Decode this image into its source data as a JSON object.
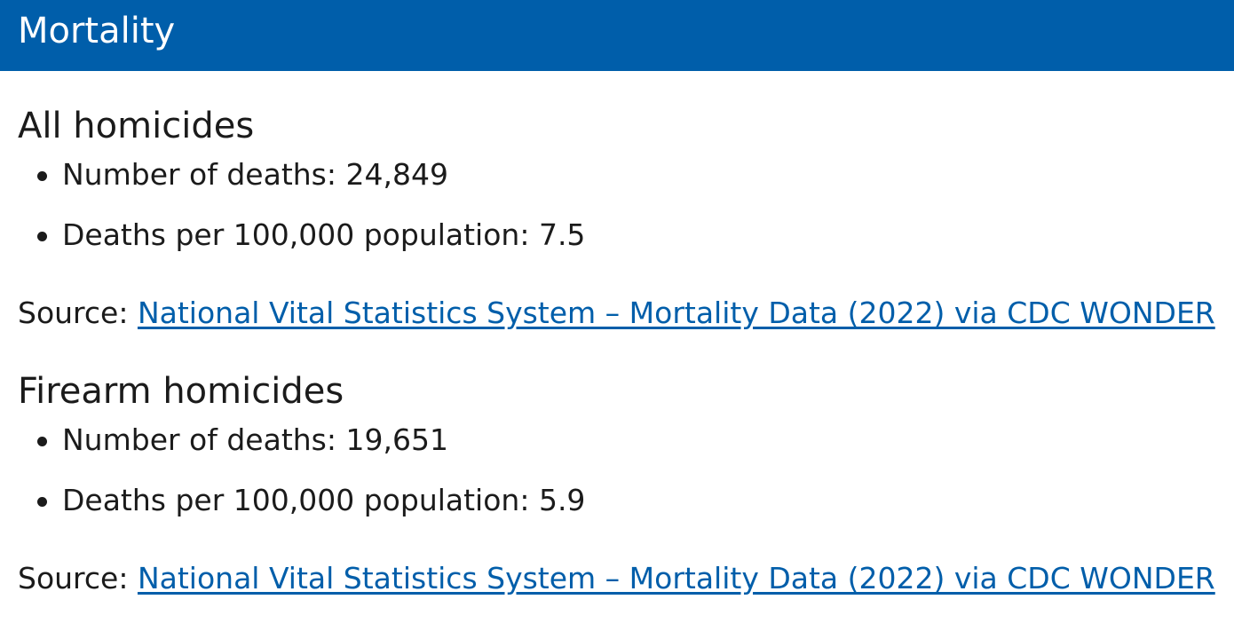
{
  "header": {
    "title": "Mortality"
  },
  "sections": [
    {
      "heading": "All homicides",
      "items": [
        "Number of deaths: 24,849",
        "Deaths per 100,000 population: 7.5"
      ],
      "source_label": "Source: ",
      "source_link": "National Vital Statistics System – Mortality Data (2022) via CDC WONDER"
    },
    {
      "heading": "Firearm homicides",
      "items": [
        "Number of deaths: 19,651",
        "Deaths per 100,000 population: 5.9"
      ],
      "source_label": "Source: ",
      "source_link": "National Vital Statistics System – Mortality Data (2022) via CDC WONDER"
    }
  ],
  "colors": {
    "header_bg": "#005eaa",
    "link": "#005eaa",
    "text": "#1b1b1b"
  }
}
